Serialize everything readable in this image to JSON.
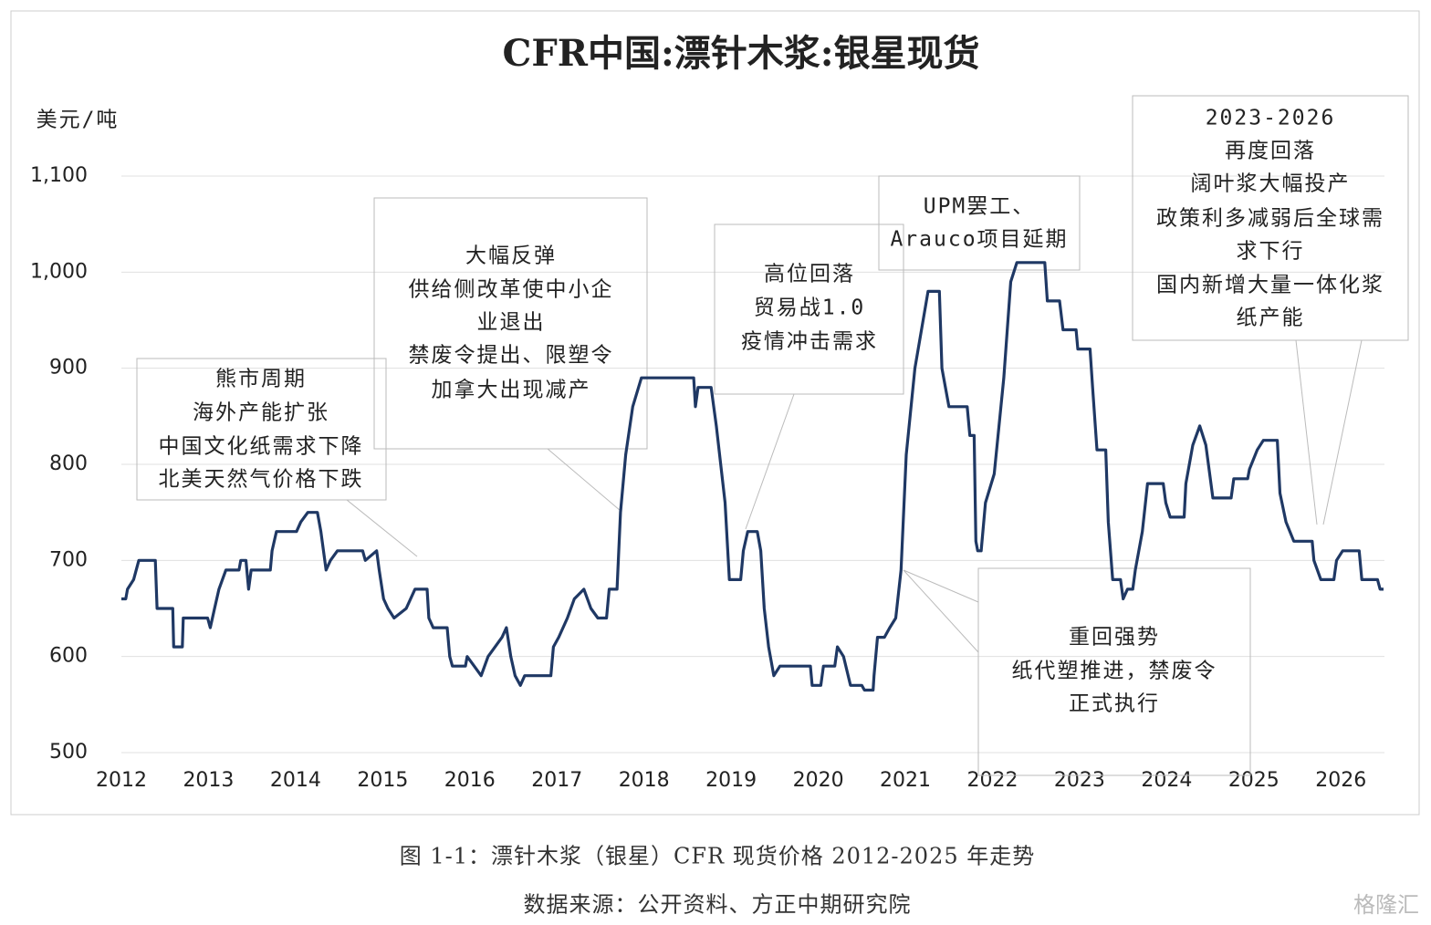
{
  "chart_data": {
    "type": "line",
    "title": "CFR中国:漂针木浆:银星现货",
    "y_label": "美元/吨",
    "caption": "图 1-1：漂针木浆（银星）CFR 现货价格 2012-2025 年走势",
    "source": "数据来源：公开资料、方正中期研究院",
    "watermark": "格隆汇",
    "xlim": [
      2012,
      2026.5
    ],
    "xticks": [
      2012,
      2013,
      2014,
      2015,
      2016,
      2017,
      2018,
      2019,
      2020,
      2021,
      2022,
      2023,
      2024,
      2025,
      2026
    ],
    "ylim": [
      500,
      1100
    ],
    "yticks": [
      500,
      600,
      700,
      800,
      900,
      {
        "value": 1000,
        "label": "1,000"
      },
      {
        "value": 1100,
        "label": "1,100"
      }
    ],
    "grid": true,
    "series": [
      {
        "name": "CFR中国:漂针木浆:银星现货",
        "color": "#1f3864",
        "x": [
          2012.0,
          2012.05,
          2012.07,
          2012.14,
          2012.2,
          2012.39,
          2012.41,
          2012.59,
          2012.6,
          2012.7,
          2012.71,
          2012.99,
          2013.02,
          2013.07,
          2013.12,
          2013.2,
          2013.35,
          2013.37,
          2013.43,
          2013.46,
          2013.49,
          2013.71,
          2013.73,
          2013.78,
          2014.01,
          2014.06,
          2014.14,
          2014.25,
          2014.29,
          2014.35,
          2014.4,
          2014.48,
          2014.77,
          2014.8,
          2014.93,
          2014.96,
          2015.01,
          2015.06,
          2015.13,
          2015.27,
          2015.37,
          2015.51,
          2015.53,
          2015.58,
          2015.74,
          2015.77,
          2015.8,
          2015.95,
          2015.97,
          2016.05,
          2016.13,
          2016.21,
          2016.29,
          2016.37,
          2016.42,
          2016.47,
          2016.52,
          2016.58,
          2016.63,
          2016.93,
          2016.96,
          2017.02,
          2017.12,
          2017.2,
          2017.31,
          2017.39,
          2017.47,
          2017.57,
          2017.6,
          2017.69,
          2017.73,
          2017.79,
          2017.87,
          2017.97,
          2018.57,
          2018.59,
          2018.62,
          2018.77,
          2018.83,
          2018.88,
          2018.93,
          2018.98,
          2019.11,
          2019.14,
          2019.19,
          2019.3,
          2019.34,
          2019.38,
          2019.43,
          2019.49,
          2019.56,
          2019.91,
          2019.93,
          2020.03,
          2020.06,
          2020.19,
          2020.22,
          2020.29,
          2020.37,
          2020.5,
          2020.53,
          2020.63,
          2020.64,
          2020.68,
          2020.76,
          2020.82,
          2020.89,
          2020.95,
          2021.01,
          2021.11,
          2021.26,
          2021.39,
          2021.42,
          2021.5,
          2021.71,
          2021.74,
          2021.79,
          2021.81,
          2021.83,
          2021.87,
          2021.92,
          2022.02,
          2022.13,
          2022.21,
          2022.28,
          2022.6,
          2022.63,
          2022.77,
          2022.81,
          2022.96,
          2022.98,
          2023.12,
          2023.15,
          2023.2,
          2023.3,
          2023.33,
          2023.38,
          2023.47,
          2023.5,
          2023.55,
          2023.61,
          2023.64,
          2023.72,
          2023.78,
          2023.96,
          2023.99,
          2024.04,
          2024.2,
          2024.22,
          2024.3,
          2024.38,
          2024.45,
          2024.53,
          2024.74,
          2024.77,
          2024.93,
          2024.95,
          2025.04,
          2025.11,
          2025.27,
          2025.3,
          2025.37,
          2025.46,
          2025.67,
          2025.69,
          2025.77,
          2025.92,
          2025.95,
          2026.02,
          2026.21,
          2026.24,
          2026.42,
          2026.45,
          2026.49
        ],
        "values": [
          660,
          660,
          670,
          680,
          700,
          700,
          650,
          650,
          610,
          610,
          640,
          640,
          630,
          650,
          670,
          690,
          690,
          700,
          700,
          670,
          690,
          690,
          710,
          730,
          730,
          740,
          750,
          750,
          730,
          690,
          700,
          710,
          710,
          700,
          710,
          690,
          660,
          650,
          640,
          650,
          670,
          670,
          640,
          630,
          630,
          600,
          590,
          590,
          600,
          590,
          580,
          600,
          610,
          620,
          630,
          600,
          580,
          570,
          580,
          580,
          610,
          620,
          640,
          660,
          670,
          650,
          640,
          640,
          670,
          670,
          750,
          810,
          860,
          890,
          890,
          860,
          880,
          880,
          840,
          800,
          760,
          680,
          680,
          710,
          730,
          730,
          710,
          650,
          610,
          580,
          590,
          590,
          570,
          570,
          590,
          590,
          610,
          600,
          570,
          570,
          565,
          565,
          580,
          620,
          620,
          630,
          640,
          690,
          810,
          900,
          980,
          980,
          900,
          860,
          860,
          830,
          830,
          720,
          710,
          710,
          760,
          790,
          890,
          990,
          1010,
          1010,
          970,
          970,
          940,
          940,
          920,
          920,
          880,
          815,
          815,
          740,
          680,
          680,
          660,
          670,
          670,
          690,
          730,
          780,
          780,
          760,
          745,
          745,
          780,
          820,
          840,
          820,
          765,
          765,
          785,
          785,
          795,
          815,
          825,
          825,
          770,
          740,
          720,
          720,
          700,
          680,
          680,
          700,
          710,
          710,
          680,
          680,
          670,
          670
        ]
      }
    ],
    "annotations": [
      {
        "lines": [
          "熊市周期",
          "海外产能扩张",
          "中国文化纸需求下降",
          "北美天然气价格下跌"
        ]
      },
      {
        "lines": [
          "大幅反弹",
          "供给侧改革使中小企",
          "业退出",
          "禁废令提出、限塑令",
          "加拿大出现减产"
        ]
      },
      {
        "lines": [
          "高位回落",
          "贸易战1.0",
          "疫情冲击需求"
        ]
      },
      {
        "lines": [
          "UPM罢工、",
          "Arauco项目延期"
        ]
      },
      {
        "lines": [
          "2023-2026",
          "再度回落",
          "阔叶浆大幅投产",
          "政策利多减弱后全球需",
          "求下行",
          "国内新增大量一体化浆",
          "纸产能"
        ]
      },
      {
        "lines": [
          "重回强势",
          "纸代塑推进，禁废令",
          "正式执行"
        ]
      }
    ]
  }
}
